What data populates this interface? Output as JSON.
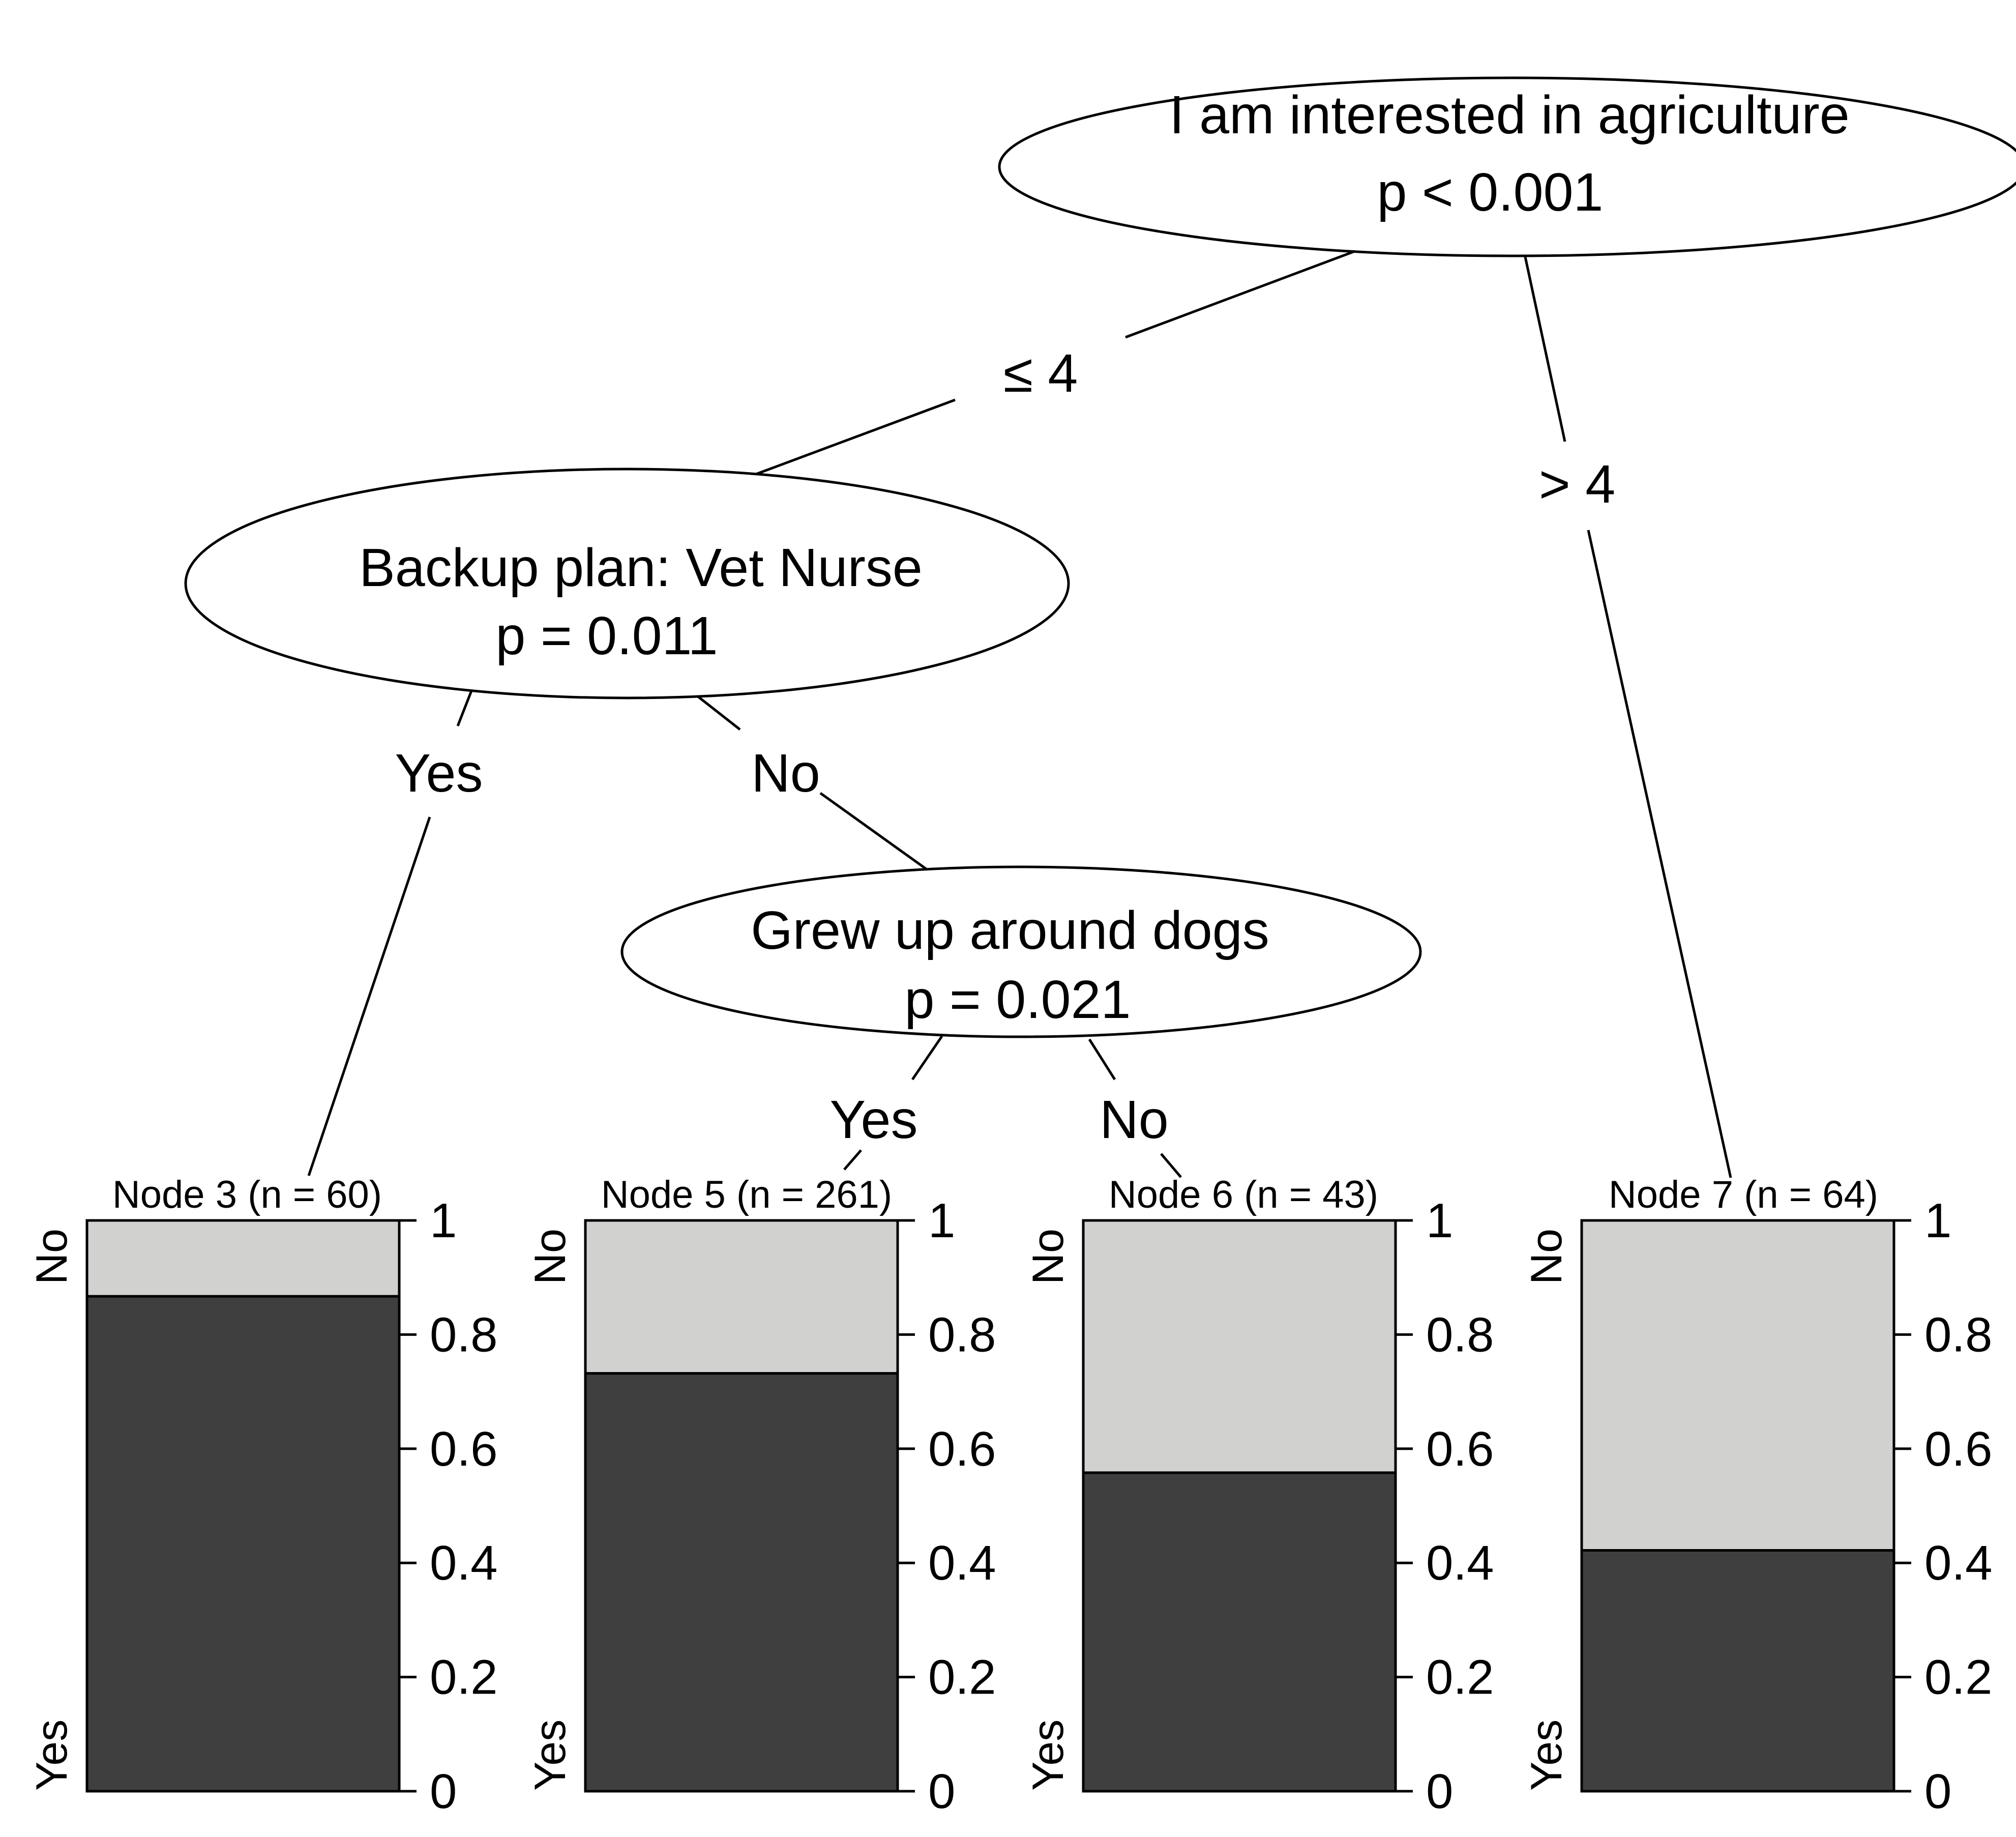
{
  "colors": {
    "yes_fill": "#3f3f3f",
    "no_fill": "#d1d1d0"
  },
  "inner_nodes": [
    {
      "id": "1",
      "variable": "I am interested in agriculture",
      "p": "p < 0.001"
    },
    {
      "id": "2",
      "variable": "Backup plan: Vet Nurse",
      "p": "p = 0.011"
    },
    {
      "id": "4",
      "variable": "Grew up around dogs",
      "p": "p = 0.021"
    }
  ],
  "edge_labels": [
    "≤ 4",
    "> 4",
    "Yes",
    "No",
    "Yes",
    "No"
  ],
  "leaves": [
    {
      "id": "3",
      "title": "Node 3 (n = 60)",
      "yes_proportion": 0.867
    },
    {
      "id": "5",
      "title": "Node 5 (n = 261)",
      "yes_proportion": 0.732
    },
    {
      "id": "6",
      "title": "Node 6 (n = 43)",
      "yes_proportion": 0.558
    },
    {
      "id": "7",
      "title": "Node 7 (n = 64)",
      "yes_proportion": 0.422
    }
  ],
  "axis": {
    "ticks": [
      "1",
      "0.8",
      "0.6",
      "0.4",
      "0.2",
      "0"
    ],
    "class_top": "No",
    "class_bottom": "Yes"
  }
}
